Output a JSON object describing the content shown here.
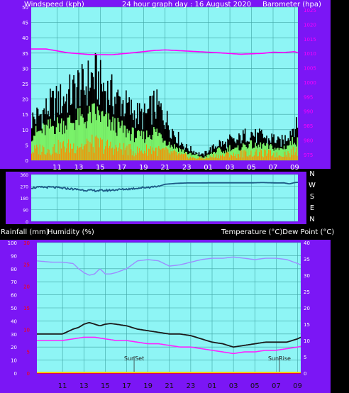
{
  "colors": {
    "background": "#000000",
    "panel_bg": "#7b16f5",
    "plot_bg": "#8ef5f5",
    "grid": "#3fa4a4",
    "text": "#ffffff",
    "barometer": "#ff00ff",
    "wind_black": "#000000",
    "wind_green": "#7af26a",
    "wind_orange": "#ff8c00",
    "direction": "#1c5a86",
    "temperature": "#1a1a1a",
    "dewpoint": "#ff22ff",
    "humidity": "#9d8cff",
    "rainfall": "#ff0000",
    "bottom_strip": "#ffcc00"
  },
  "chart_data": [
    {
      "id": "wind-baro",
      "type": "line",
      "title": "24 hour graph day : 16 August 2020",
      "ylabel": "Windspeed (kph)",
      "y2label": "Barometer (hpa)",
      "x_ticks": [
        "11",
        "13",
        "15",
        "17",
        "19",
        "21",
        "23",
        "01",
        "03",
        "05",
        "07",
        "09"
      ],
      "x_hours": [
        11,
        13,
        15,
        17,
        19,
        21,
        23,
        25,
        27,
        29,
        31,
        33
      ],
      "xlim": [
        8.6,
        33.3
      ],
      "y_ticks": [
        0,
        5,
        10,
        15,
        20,
        25,
        30,
        35,
        40,
        45,
        50
      ],
      "ylim": [
        0,
        50
      ],
      "y2_ticks": [
        975,
        980,
        985,
        990,
        995,
        1000,
        1005,
        1010,
        1015,
        1020,
        1025
      ],
      "y2lim": [
        973,
        1026
      ],
      "series": [
        {
          "kind": "wind_gust",
          "x": [
            8.6,
            9.5,
            10.5,
            11.5,
            12.5,
            13.0,
            13.5,
            14.0,
            14.5,
            15.0,
            15.5,
            16.0,
            16.5,
            17.0,
            17.5,
            18.0,
            18.5,
            19.0,
            19.5,
            20.0,
            20.5,
            21.0,
            21.5,
            22.0,
            22.5,
            23.0,
            23.5,
            24.0,
            24.5,
            25.0,
            25.5,
            26.0,
            26.5,
            27.0,
            27.5,
            28.0,
            28.5,
            29.0,
            29.5,
            30.0,
            30.5,
            31.0,
            31.5,
            32.0,
            32.5,
            33.0,
            33.3
          ],
          "values": [
            16,
            18,
            22,
            24,
            27,
            30,
            28,
            32,
            33,
            30,
            28,
            26,
            24,
            23,
            21,
            19,
            18,
            17,
            19,
            22,
            20,
            17,
            13,
            10,
            7,
            5,
            4,
            3,
            2,
            4,
            5,
            7,
            6,
            8,
            7,
            9,
            10,
            11,
            9,
            10,
            8,
            9,
            7,
            8,
            11,
            14,
            12
          ]
        },
        {
          "kind": "wind_avg",
          "x": [
            8.6,
            9.5,
            10.5,
            11.5,
            12.5,
            13.0,
            13.5,
            14.0,
            14.5,
            15.0,
            15.5,
            16.0,
            16.5,
            17.0,
            17.5,
            18.0,
            18.5,
            19.0,
            19.5,
            20.0,
            20.5,
            21.0,
            21.5,
            22.0,
            22.5,
            23.0,
            23.5,
            24.0,
            24.5,
            25.0,
            25.5,
            26.0,
            26.5,
            27.0,
            27.5,
            28.0,
            28.5,
            29.0,
            29.5,
            30.0,
            30.5,
            31.0,
            31.5,
            32.0,
            32.5,
            33.0,
            33.3
          ],
          "values": [
            10,
            11,
            13,
            14,
            15,
            16,
            15,
            17,
            18,
            17,
            15,
            14,
            13,
            12,
            11,
            10,
            9,
            9,
            10,
            11,
            10,
            8,
            6,
            5,
            4,
            3,
            2,
            2,
            1,
            2,
            3,
            4,
            3,
            5,
            4,
            5,
            6,
            6,
            5,
            6,
            5,
            5,
            4,
            5,
            6,
            8,
            7
          ]
        },
        {
          "kind": "wind_low",
          "x": [
            8.6,
            9.5,
            10.5,
            11.5,
            12.5,
            13.0,
            13.5,
            14.0,
            14.5,
            15.0,
            15.5,
            16.0,
            16.5,
            17.0,
            17.5,
            18.0,
            18.5,
            19.0,
            19.5,
            20.0,
            20.5,
            21.0,
            21.5,
            22.0,
            22.5,
            23.0,
            23.5,
            24.0,
            24.5,
            25.0,
            25.5,
            26.0,
            26.5,
            27.0,
            27.5,
            28.0,
            28.5,
            29.0,
            29.5,
            30.0,
            30.5,
            31.0,
            31.5,
            32.0,
            32.5,
            33.0,
            33.3
          ],
          "values": [
            4,
            5,
            5,
            6,
            6,
            7,
            6,
            7,
            7,
            7,
            6,
            6,
            5,
            5,
            5,
            4,
            4,
            4,
            5,
            5,
            4,
            4,
            3,
            3,
            2,
            2,
            1,
            1,
            1,
            1,
            2,
            2,
            2,
            3,
            2,
            3,
            3,
            3,
            3,
            3,
            3,
            3,
            2,
            3,
            3,
            4,
            4
          ]
        },
        {
          "kind": "barometer",
          "axis": "y2",
          "x": [
            8.6,
            10,
            12,
            14,
            16,
            18,
            20,
            21,
            22,
            24,
            26,
            28,
            30,
            31,
            32,
            33,
            33.3
          ],
          "values": [
            1011.5,
            1011.5,
            1010.2,
            1009.6,
            1009.5,
            1010.2,
            1011.0,
            1011.2,
            1011.0,
            1010.6,
            1010.2,
            1009.7,
            1010.0,
            1010.4,
            1010.3,
            1010.6,
            1010.2
          ]
        }
      ]
    },
    {
      "id": "direction",
      "type": "line",
      "x_ticks": [
        "11",
        "13",
        "15",
        "17",
        "19",
        "21",
        "23",
        "01",
        "03",
        "05",
        "07",
        "09"
      ],
      "x_hours": [
        11,
        13,
        15,
        17,
        19,
        21,
        23,
        25,
        27,
        29,
        31,
        33
      ],
      "xlim": [
        8.6,
        33.3
      ],
      "y_ticks": [
        0,
        90,
        180,
        270,
        360
      ],
      "ylim": [
        0,
        360
      ],
      "compass_labels": [
        "N",
        "W",
        "S",
        "E",
        "N"
      ],
      "series": [
        {
          "kind": "direction",
          "x": [
            8.6,
            9.5,
            10.5,
            11.5,
            12.5,
            13.5,
            14.5,
            15.5,
            16.5,
            17.5,
            18.5,
            19.5,
            20.5,
            21,
            22,
            23,
            24,
            25,
            26,
            27,
            28,
            29,
            30,
            31,
            31.5,
            32,
            32.5,
            33,
            33.3
          ],
          "values": [
            258,
            262,
            262,
            255,
            248,
            240,
            236,
            237,
            243,
            248,
            256,
            262,
            272,
            285,
            292,
            295,
            295,
            296,
            296,
            296,
            296,
            296,
            298,
            296,
            295,
            296,
            288,
            298,
            300
          ]
        }
      ]
    },
    {
      "id": "temp-hum-rain",
      "type": "line",
      "ylabel": "Rainfall (mm)",
      "ylabel2": "Humidity (%)",
      "y3label": "Temperature (°C)Dew Point (°C)",
      "x_ticks": [
        "11",
        "13",
        "15",
        "17",
        "19",
        "21",
        "23",
        "01",
        "03",
        "05",
        "07",
        "09"
      ],
      "x_hours": [
        11,
        13,
        15,
        17,
        19,
        21,
        23,
        25,
        27,
        29,
        31,
        33
      ],
      "xlim": [
        8.6,
        33.3
      ],
      "humidity_ticks": [
        0,
        10,
        20,
        30,
        40,
        50,
        60,
        70,
        80,
        90,
        100
      ],
      "humidity_lim": [
        0,
        100
      ],
      "rain_ticks": [
        0,
        5,
        10,
        15,
        20,
        25,
        30
      ],
      "rain_lim": [
        0,
        30
      ],
      "temp_ticks": [
        0,
        5,
        10,
        15,
        20,
        25,
        30,
        35,
        40
      ],
      "temp_lim": [
        0,
        40
      ],
      "annotations": [
        {
          "text": "SunSet",
          "hour": 17.7
        },
        {
          "text": "SunRise",
          "hour": 31.3
        }
      ],
      "series": [
        {
          "kind": "humidity",
          "axis": "humidity",
          "x": [
            8.6,
            10,
            11,
            12,
            12.5,
            13,
            13.5,
            14,
            14.5,
            15,
            15.5,
            16,
            17,
            18,
            19,
            20,
            21,
            22,
            23,
            24,
            25,
            26,
            27,
            28,
            29,
            30,
            31,
            32,
            33,
            33.3
          ],
          "values": [
            86,
            85,
            85,
            84,
            80,
            77,
            75,
            76,
            80,
            76,
            76,
            77,
            80,
            86,
            87,
            86,
            82,
            83,
            85,
            87,
            88,
            88,
            89,
            88,
            87,
            88,
            88,
            87,
            84,
            83
          ]
        },
        {
          "kind": "temperature",
          "axis": "temp",
          "x": [
            8.6,
            10,
            11,
            12,
            12.5,
            13,
            13.5,
            14,
            14.5,
            15,
            15.5,
            16,
            17,
            18,
            19,
            20,
            21,
            22,
            23,
            24,
            25,
            26,
            27,
            28,
            29,
            30,
            31,
            32,
            33,
            33.3
          ],
          "values": [
            12,
            12,
            12,
            13.5,
            14,
            15,
            15.5,
            15,
            14.5,
            15,
            15.2,
            15,
            14.5,
            13.5,
            13,
            12.5,
            12,
            12,
            11.5,
            10.5,
            9.5,
            9,
            8,
            8.5,
            9,
            9.5,
            9.5,
            9.5,
            10.5,
            11
          ]
        },
        {
          "kind": "dewpoint",
          "axis": "temp",
          "x": [
            8.6,
            10,
            11,
            12,
            13,
            14,
            15,
            16,
            17,
            18,
            19,
            20,
            21,
            22,
            23,
            24,
            25,
            26,
            27,
            28,
            29,
            30,
            31,
            32,
            33,
            33.3
          ],
          "values": [
            10,
            10,
            10,
            10.5,
            11,
            11,
            10.5,
            10,
            10,
            9.5,
            9,
            9,
            8.5,
            8,
            8,
            7.5,
            7,
            6.5,
            6,
            6.5,
            6.5,
            7,
            7,
            7.5,
            8,
            8.2
          ]
        },
        {
          "kind": "rainfall",
          "axis": "rain",
          "x": [
            8.6,
            33.3
          ],
          "values": [
            0,
            0
          ]
        }
      ]
    }
  ]
}
